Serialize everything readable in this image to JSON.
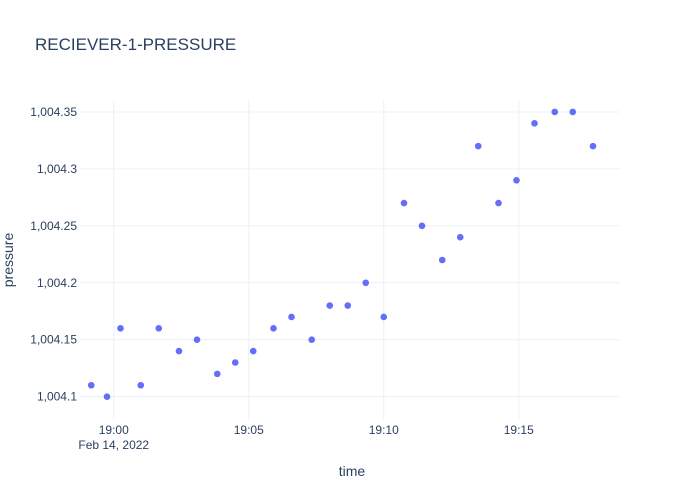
{
  "chart_data": {
    "type": "scatter",
    "title": "RECIEVER-1-PRESSURE",
    "xlabel": "time",
    "ylabel": "pressure",
    "x_axis_type": "date",
    "xlim": [
      "2022-02-14T18:58:45",
      "2022-02-14T19:18:45"
    ],
    "ylim": [
      1004.0795,
      1004.3605
    ],
    "x_ticks": [
      {
        "value": "2022-02-14T19:00:00",
        "label": "19:00",
        "sublabel": "Feb 14, 2022"
      },
      {
        "value": "2022-02-14T19:05:00",
        "label": "19:05"
      },
      {
        "value": "2022-02-14T19:10:00",
        "label": "19:10"
      },
      {
        "value": "2022-02-14T19:15:00",
        "label": "19:15"
      }
    ],
    "y_ticks": [
      {
        "value": 1004.1,
        "label": "1,004.1"
      },
      {
        "value": 1004.15,
        "label": "1,004.15"
      },
      {
        "value": 1004.2,
        "label": "1,004.2"
      },
      {
        "value": 1004.25,
        "label": "1,004.25"
      },
      {
        "value": 1004.3,
        "label": "1,004.3"
      },
      {
        "value": 1004.35,
        "label": "1,004.35"
      }
    ],
    "grid": true,
    "marker_color": "#636efa",
    "points": [
      {
        "x": "2022-02-14T18:59:10",
        "y": 1004.11
      },
      {
        "x": "2022-02-14T18:59:45",
        "y": 1004.1
      },
      {
        "x": "2022-02-14T19:00:15",
        "y": 1004.16
      },
      {
        "x": "2022-02-14T19:01:00",
        "y": 1004.11
      },
      {
        "x": "2022-02-14T19:01:40",
        "y": 1004.16
      },
      {
        "x": "2022-02-14T19:02:25",
        "y": 1004.14
      },
      {
        "x": "2022-02-14T19:03:05",
        "y": 1004.15
      },
      {
        "x": "2022-02-14T19:03:50",
        "y": 1004.12
      },
      {
        "x": "2022-02-14T19:04:30",
        "y": 1004.13
      },
      {
        "x": "2022-02-14T19:05:10",
        "y": 1004.14
      },
      {
        "x": "2022-02-14T19:05:55",
        "y": 1004.16
      },
      {
        "x": "2022-02-14T19:06:35",
        "y": 1004.17
      },
      {
        "x": "2022-02-14T19:07:20",
        "y": 1004.15
      },
      {
        "x": "2022-02-14T19:08:00",
        "y": 1004.18
      },
      {
        "x": "2022-02-14T19:08:40",
        "y": 1004.18
      },
      {
        "x": "2022-02-14T19:09:20",
        "y": 1004.2
      },
      {
        "x": "2022-02-14T19:10:00",
        "y": 1004.17
      },
      {
        "x": "2022-02-14T19:10:45",
        "y": 1004.27
      },
      {
        "x": "2022-02-14T19:11:25",
        "y": 1004.25
      },
      {
        "x": "2022-02-14T19:12:10",
        "y": 1004.22
      },
      {
        "x": "2022-02-14T19:12:50",
        "y": 1004.24
      },
      {
        "x": "2022-02-14T19:13:30",
        "y": 1004.32
      },
      {
        "x": "2022-02-14T19:14:15",
        "y": 1004.27
      },
      {
        "x": "2022-02-14T19:14:55",
        "y": 1004.29
      },
      {
        "x": "2022-02-14T19:15:35",
        "y": 1004.34
      },
      {
        "x": "2022-02-14T19:16:20",
        "y": 1004.35
      },
      {
        "x": "2022-02-14T19:17:00",
        "y": 1004.35
      },
      {
        "x": "2022-02-14T19:17:45",
        "y": 1004.32
      }
    ]
  }
}
